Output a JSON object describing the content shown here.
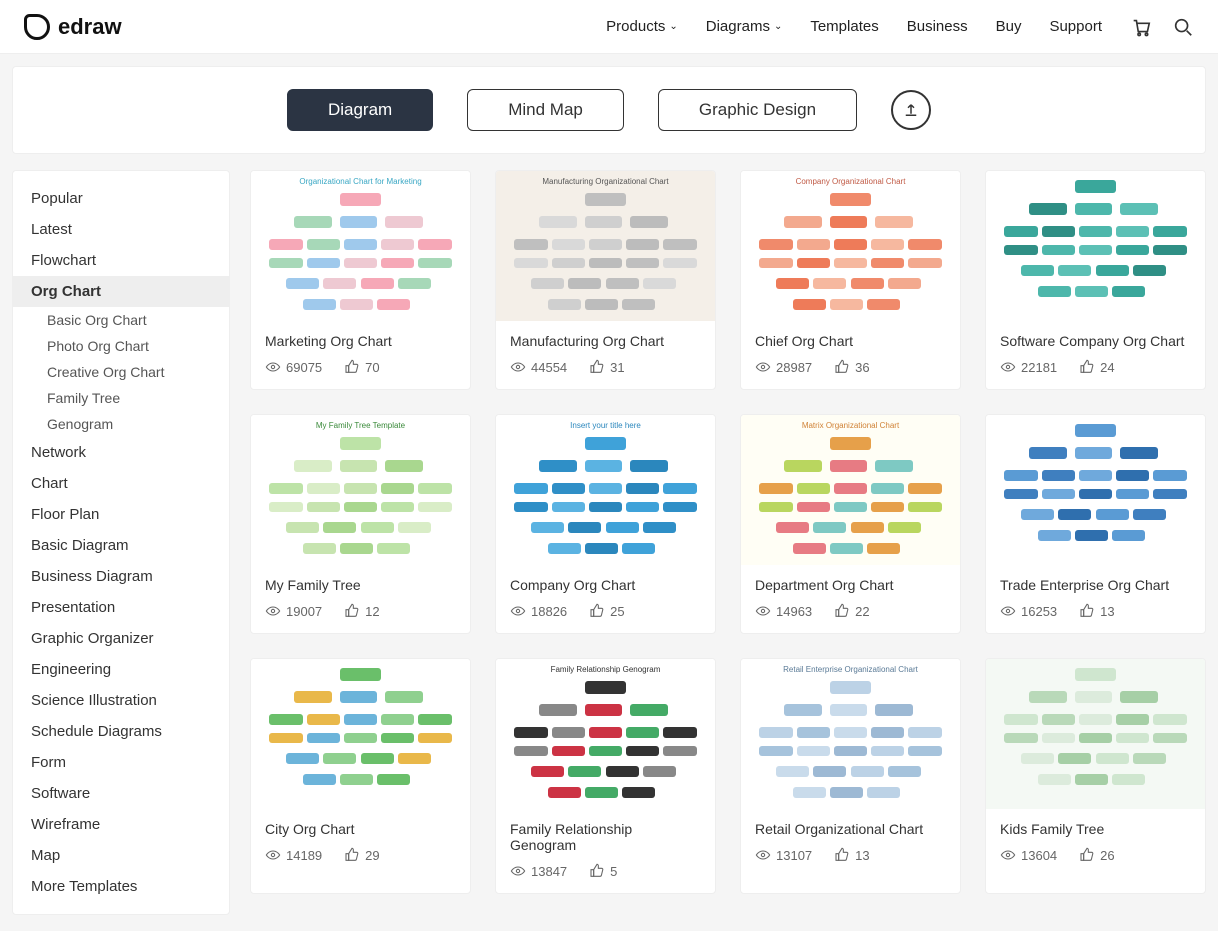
{
  "brand": "edraw",
  "nav": {
    "items": [
      "Products",
      "Diagrams",
      "Templates",
      "Business",
      "Buy",
      "Support"
    ],
    "dropdown_indices": [
      0,
      1
    ]
  },
  "tabs": [
    "Diagram",
    "Mind Map",
    "Graphic Design"
  ],
  "tabs_active_index": 0,
  "sidebar": {
    "items": [
      "Popular",
      "Latest",
      "Flowchart",
      "Org Chart",
      "Network",
      "Chart",
      "Floor Plan",
      "Basic Diagram",
      "Business Diagram",
      "Presentation",
      "Graphic Organizer",
      "Engineering",
      "Science Illustration",
      "Schedule Diagrams",
      "Form",
      "Software",
      "Wireframe",
      "Map",
      "More Templates"
    ],
    "active_index": 3,
    "subitems": [
      "Basic Org Chart",
      "Photo Org Chart",
      "Creative Org Chart",
      "Family Tree",
      "Genogram"
    ]
  },
  "cards": [
    {
      "title": "Marketing Org Chart",
      "views": "69075",
      "likes": "70",
      "thumb_label": "Organizational Chart for Marketing",
      "palette": [
        "#f6a8b7",
        "#a7d8b8",
        "#9fc9ec",
        "#eec9d2"
      ],
      "bg": "#ffffff",
      "title_color": "#39a7c4"
    },
    {
      "title": "Manufacturing Org Chart",
      "views": "44554",
      "likes": "31",
      "thumb_label": "Manufacturing Organizational Chart",
      "palette": [
        "#bfbfbf",
        "#d9d9d9",
        "#cfcfcf",
        "#bcbcbc"
      ],
      "bg": "#f4efe8",
      "title_color": "#555"
    },
    {
      "title": "Chief Org Chart",
      "views": "28987",
      "likes": "36",
      "thumb_label": "Company Organizational Chart",
      "palette": [
        "#f08a6b",
        "#f3a98e",
        "#ee7b59",
        "#f6b89f"
      ],
      "bg": "#ffffff",
      "title_color": "#c05a45"
    },
    {
      "title": "Software Company Org Chart",
      "views": "22181",
      "likes": "24",
      "thumb_label": "",
      "palette": [
        "#3aa79b",
        "#2f8f85",
        "#4db7ab",
        "#5cc0b5"
      ],
      "bg": "#ffffff",
      "title_color": "#2f8f85"
    },
    {
      "title": "My Family Tree",
      "views": "19007",
      "likes": "12",
      "thumb_label": "My Family Tree Template",
      "palette": [
        "#bde3a7",
        "#d9edc7",
        "#c7e4b0",
        "#a9d78f"
      ],
      "bg": "#ffffff",
      "title_color": "#3a8a3a"
    },
    {
      "title": "Company Org Chart",
      "views": "18826",
      "likes": "25",
      "thumb_label": "Insert your title here",
      "palette": [
        "#3fa2d9",
        "#2f8fc7",
        "#5bb3e2",
        "#2b87bd"
      ],
      "bg": "#ffffff",
      "title_color": "#2b87bd"
    },
    {
      "title": "Department Org Chart",
      "views": "14963",
      "likes": "22",
      "thumb_label": "Matrix Organizational Chart",
      "palette": [
        "#e6a04a",
        "#b9d65f",
        "#e77b83",
        "#7ec9c3"
      ],
      "bg": "#fffef5",
      "title_color": "#d08236"
    },
    {
      "title": "Trade Enterprise Org Chart",
      "views": "16253",
      "likes": "13",
      "thumb_label": "",
      "palette": [
        "#5a9bd4",
        "#3f7fbf",
        "#6fa9dc",
        "#2f6fae"
      ],
      "bg": "#ffffff",
      "title_color": "#2f6fae"
    },
    {
      "title": "City Org Chart",
      "views": "14189",
      "likes": "29",
      "thumb_label": "",
      "palette": [
        "#6abf6a",
        "#e9b84a",
        "#6cb4da",
        "#8fd08f"
      ],
      "bg": "#ffffff",
      "title_color": "#3a8a3a"
    },
    {
      "title": "Family Relationship Genogram",
      "views": "13847",
      "likes": "5",
      "thumb_label": "Family Relationship Genogram",
      "palette": [
        "#333333",
        "#888888",
        "#cc3344",
        "#44aa66"
      ],
      "bg": "#ffffff",
      "title_color": "#333"
    },
    {
      "title": "Retail Organizational Chart",
      "views": "13107",
      "likes": "13",
      "thumb_label": "Retail Enterprise Organizational Chart",
      "palette": [
        "#bcd2e6",
        "#a6c3dc",
        "#c9dbeb",
        "#9db9d4"
      ],
      "bg": "#ffffff",
      "title_color": "#5a7a96"
    },
    {
      "title": "Kids Family Tree",
      "views": "13604",
      "likes": "26",
      "thumb_label": "",
      "palette": [
        "#cfe6cf",
        "#b9d9b9",
        "#dcebdc",
        "#a6cfa6"
      ],
      "bg": "#f4f9f4",
      "title_color": "#6a9a6a"
    }
  ],
  "colors": {
    "tab_active_bg": "#2b3443",
    "page_bg": "#f5f5f5",
    "border": "#eeeeee",
    "text": "#333333",
    "muted": "#666666"
  }
}
